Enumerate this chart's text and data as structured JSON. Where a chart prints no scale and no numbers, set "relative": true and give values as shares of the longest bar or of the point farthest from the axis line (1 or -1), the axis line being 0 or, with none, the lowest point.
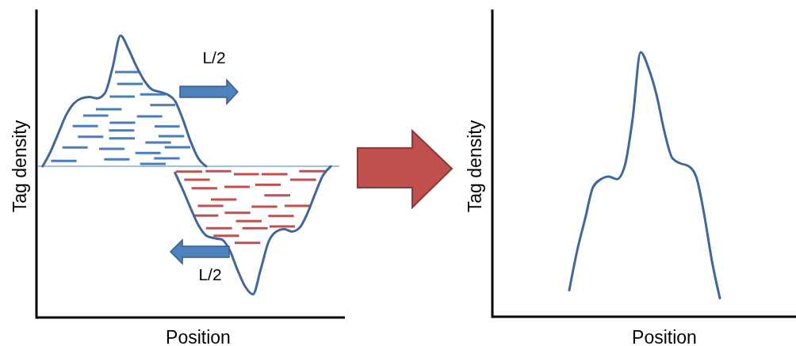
{
  "chart_data": [
    {
      "type": "line",
      "relative": true,
      "xlabel": "Position",
      "ylabel": "Tag density",
      "annotations": [
        "L/2",
        "L/2"
      ],
      "ref_lines": [
        {
          "axis": "y",
          "value": 0,
          "color": "#4a7ebb"
        }
      ],
      "categories": [
        null,
        null,
        null,
        null,
        null,
        null,
        null,
        null,
        null,
        null,
        null,
        null,
        null,
        null,
        null,
        null,
        null,
        null,
        null,
        null,
        null,
        null,
        null,
        null,
        null,
        null,
        null,
        null,
        null,
        null,
        null,
        null,
        null,
        null,
        null,
        null,
        null,
        null,
        null
      ],
      "series": [
        {
          "color": "#41679a",
          "values": [
            0,
            0.11,
            0.25,
            0.39,
            0.48,
            0.52,
            0.53,
            0.52,
            0.56,
            0.76,
            1,
            0.9,
            0.77,
            0.66,
            0.59,
            0.57,
            0.55,
            0.5,
            0.36,
            0.19,
            0.06,
            0,
            null,
            null,
            null,
            null,
            null,
            null,
            null,
            null,
            null,
            null,
            null,
            null,
            null,
            null,
            null,
            null,
            null
          ]
        },
        {
          "color": "#41679a",
          "values": [
            null,
            null,
            null,
            null,
            null,
            null,
            null,
            null,
            null,
            null,
            null,
            null,
            null,
            null,
            null,
            null,
            null,
            -0.05,
            -0.18,
            -0.32,
            -0.45,
            -0.53,
            -0.55,
            -0.56,
            -0.64,
            -0.79,
            -0.92,
            -0.98,
            -0.79,
            -0.58,
            -0.5,
            -0.48,
            -0.5,
            -0.47,
            -0.36,
            -0.21,
            -0.07,
            0,
            null
          ]
        }
      ]
    },
    {
      "type": "line",
      "relative": true,
      "xlabel": "Position",
      "ylabel": "Tag density",
      "categories": [
        null,
        null,
        null,
        null,
        null,
        null,
        null,
        null,
        null,
        null,
        null,
        null,
        null,
        null,
        null,
        null,
        null,
        null,
        null,
        null,
        null,
        null,
        null,
        null,
        null,
        null,
        null,
        null,
        null,
        null,
        null,
        null,
        null,
        null,
        null,
        null,
        null,
        null
      ],
      "series": [
        {
          "color": "#41679a",
          "values": [
            null,
            null,
            null,
            null,
            null,
            null,
            null,
            null,
            null,
            0.1,
            0.25,
            0.37,
            0.49,
            0.52,
            0.53,
            0.52,
            0.57,
            0.75,
            1,
            0.94,
            0.84,
            0.7,
            0.6,
            0.58,
            0.57,
            0.53,
            0.39,
            0.21,
            0.07,
            null,
            null,
            null,
            null,
            null,
            null,
            null,
            null,
            null
          ]
        }
      ]
    }
  ]
}
